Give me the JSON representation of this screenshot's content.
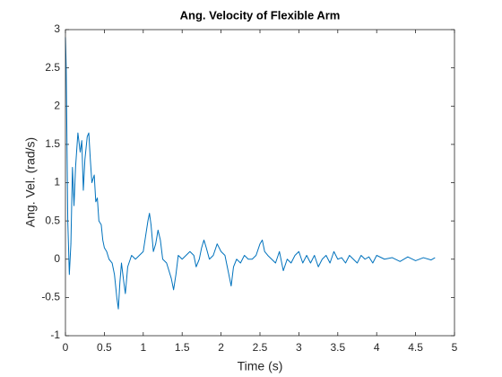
{
  "chart_data": {
    "type": "line",
    "title": "Ang. Velocity of Flexible Arm",
    "x_label": "Time (s)",
    "y_label": "Ang. Vel. (rad/s)",
    "xlim": [
      0,
      5
    ],
    "ylim": [
      -1,
      3
    ],
    "xticks": [
      0,
      0.5,
      1,
      1.5,
      2,
      2.5,
      3,
      3.5,
      4,
      4.5,
      5
    ],
    "yticks": [
      -1,
      -0.5,
      0,
      0.5,
      1,
      1.5,
      2,
      2.5,
      3
    ],
    "grid": false,
    "series": [
      {
        "color": "#0072bd",
        "x": [
          0,
          0.01,
          0.02,
          0.03,
          0.05,
          0.07,
          0.09,
          0.11,
          0.13,
          0.16,
          0.19,
          0.21,
          0.23,
          0.25,
          0.28,
          0.3,
          0.32,
          0.34,
          0.37,
          0.39,
          0.41,
          0.43,
          0.46,
          0.48,
          0.5,
          0.53,
          0.56,
          0.6,
          0.63,
          0.66,
          0.68,
          0.7,
          0.72,
          0.75,
          0.77,
          0.8,
          0.85,
          0.9,
          0.95,
          1.0,
          1.03,
          1.06,
          1.08,
          1.1,
          1.13,
          1.16,
          1.19,
          1.22,
          1.25,
          1.3,
          1.33,
          1.36,
          1.39,
          1.42,
          1.45,
          1.5,
          1.55,
          1.6,
          1.65,
          1.68,
          1.72,
          1.75,
          1.78,
          1.81,
          1.85,
          1.9,
          1.95,
          2.0,
          2.05,
          2.1,
          2.13,
          2.16,
          2.2,
          2.25,
          2.3,
          2.35,
          2.4,
          2.45,
          2.5,
          2.53,
          2.56,
          2.6,
          2.65,
          2.7,
          2.75,
          2.8,
          2.85,
          2.9,
          2.95,
          3.0,
          3.05,
          3.1,
          3.15,
          3.2,
          3.25,
          3.3,
          3.35,
          3.4,
          3.45,
          3.5,
          3.55,
          3.6,
          3.65,
          3.7,
          3.75,
          3.8,
          3.85,
          3.9,
          3.95,
          4.0,
          4.1,
          4.2,
          4.3,
          4.4,
          4.5,
          4.6,
          4.7,
          4.75
        ],
        "values": [
          2.9,
          2.5,
          1.5,
          0.5,
          -0.2,
          0.2,
          1.2,
          0.7,
          1.2,
          1.65,
          1.4,
          1.55,
          0.9,
          1.3,
          1.6,
          1.65,
          1.3,
          1.0,
          1.1,
          0.75,
          0.8,
          0.5,
          0.45,
          0.25,
          0.15,
          0.1,
          0.0,
          -0.05,
          -0.2,
          -0.5,
          -0.65,
          -0.3,
          -0.05,
          -0.3,
          -0.45,
          -0.1,
          0.05,
          0.0,
          0.05,
          0.1,
          0.3,
          0.5,
          0.6,
          0.45,
          0.1,
          0.2,
          0.38,
          0.25,
          0.0,
          -0.05,
          -0.15,
          -0.25,
          -0.4,
          -0.2,
          0.05,
          0.0,
          0.05,
          0.1,
          0.05,
          -0.1,
          0.0,
          0.15,
          0.25,
          0.15,
          0.0,
          0.05,
          0.2,
          0.1,
          0.05,
          -0.2,
          -0.35,
          -0.1,
          0.0,
          -0.05,
          0.05,
          0.0,
          0.0,
          0.05,
          0.2,
          0.25,
          0.1,
          0.05,
          0.0,
          -0.05,
          0.1,
          -0.15,
          0.0,
          -0.05,
          0.05,
          0.1,
          -0.05,
          0.05,
          -0.05,
          0.05,
          -0.1,
          0.0,
          0.05,
          -0.05,
          0.1,
          0.0,
          0.02,
          -0.05,
          0.05,
          0.0,
          -0.05,
          0.05,
          0.0,
          0.03,
          -0.05,
          0.05,
          0.0,
          0.02,
          -0.03,
          0.03,
          -0.02,
          0.02,
          -0.01,
          0.02
        ]
      }
    ]
  }
}
